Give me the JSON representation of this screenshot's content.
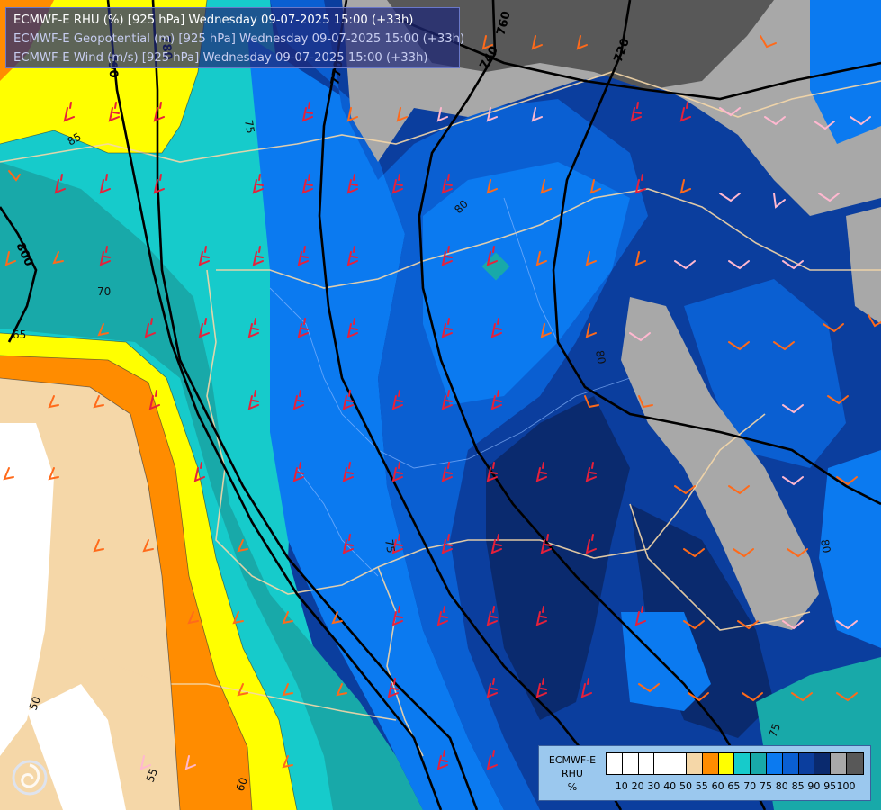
{
  "titles": {
    "line1": "ECMWF-E RHU (%) [925 hPa] Wednesday 09-07-2025 15:00 (+33h)",
    "line2": "ECMWF-E Geopotential (m) [925 hPa] Wednesday 09-07-2025 15:00 (+33h)",
    "line3": "ECMWF-E Wind (m/s) [925 hPa] Wednesday 09-07-2025 15:00 (+33h)"
  },
  "legend": {
    "title": [
      "ECMWF-E",
      "RHU",
      "%"
    ],
    "tick_labels": [
      "10",
      "20",
      "30",
      "40",
      "50",
      "55",
      "60",
      "65",
      "70",
      "75",
      "80",
      "85",
      "90",
      "95",
      "100"
    ],
    "colors": [
      "#ffffff",
      "#ffffff",
      "#ffffff",
      "#ffffff",
      "#ffffff",
      "#f5d7a8",
      "#ff8c00",
      "#ffff00",
      "#16cbcb",
      "#18a9a9",
      "#0b7af0",
      "#0a5fd2",
      "#0b3e9e",
      "#0a2a6e",
      "#a8a8a8",
      "#585858"
    ]
  },
  "geopotential_labels": [
    "800",
    "790",
    "780",
    "770",
    "760",
    "740",
    "720"
  ],
  "rhu_contour_labels": [
    "85",
    "80",
    "75",
    "70",
    "65",
    "60",
    "55",
    "50",
    "80",
    "80",
    "75",
    "75"
  ]
}
